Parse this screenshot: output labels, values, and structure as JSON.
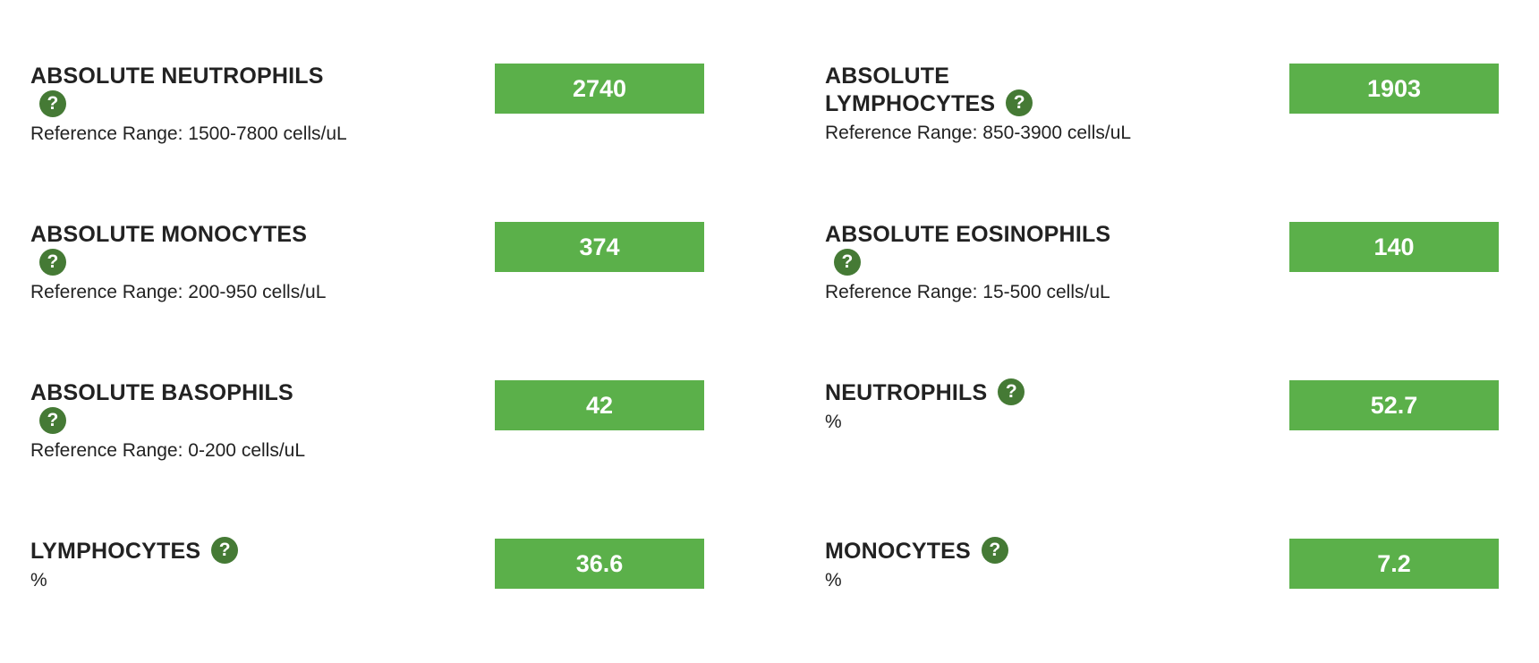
{
  "results": [
    {
      "name": "ABSOLUTE NEUTROPHILS",
      "value": "2740",
      "detail": "Reference Range: 1500-7800 cells/uL",
      "help_icon": "question-circle-icon",
      "help_glyph": "?"
    },
    {
      "name_line1": "ABSOLUTE",
      "name_line2": "LYMPHOCYTES",
      "value": "1903",
      "detail": "Reference Range: 850-3900 cells/uL",
      "help_icon": "question-circle-icon",
      "help_glyph": "?"
    },
    {
      "name": "ABSOLUTE MONOCYTES",
      "value": "374",
      "detail": "Reference Range: 200-950 cells/uL",
      "help_icon": "question-circle-icon",
      "help_glyph": "?"
    },
    {
      "name": "ABSOLUTE EOSINOPHILS",
      "value": "140",
      "detail": "Reference Range: 15-500 cells/uL",
      "help_icon": "question-circle-icon",
      "help_glyph": "?"
    },
    {
      "name": "ABSOLUTE BASOPHILS",
      "value": "42",
      "detail": "Reference Range: 0-200 cells/uL",
      "help_icon": "question-circle-icon",
      "help_glyph": "?"
    },
    {
      "name": "NEUTROPHILS",
      "value": "52.7",
      "detail": "%",
      "help_icon": "question-circle-icon",
      "help_glyph": "?"
    },
    {
      "name": "LYMPHOCYTES",
      "value": "36.6",
      "detail": "%",
      "help_icon": "question-circle-icon",
      "help_glyph": "?"
    },
    {
      "name": "MONOCYTES",
      "value": "7.2",
      "detail": "%",
      "help_icon": "question-circle-icon",
      "help_glyph": "?"
    }
  ],
  "colors": {
    "value_box_bg": "#5bb04a",
    "help_icon_bg": "#457a35",
    "text": "#222222"
  }
}
